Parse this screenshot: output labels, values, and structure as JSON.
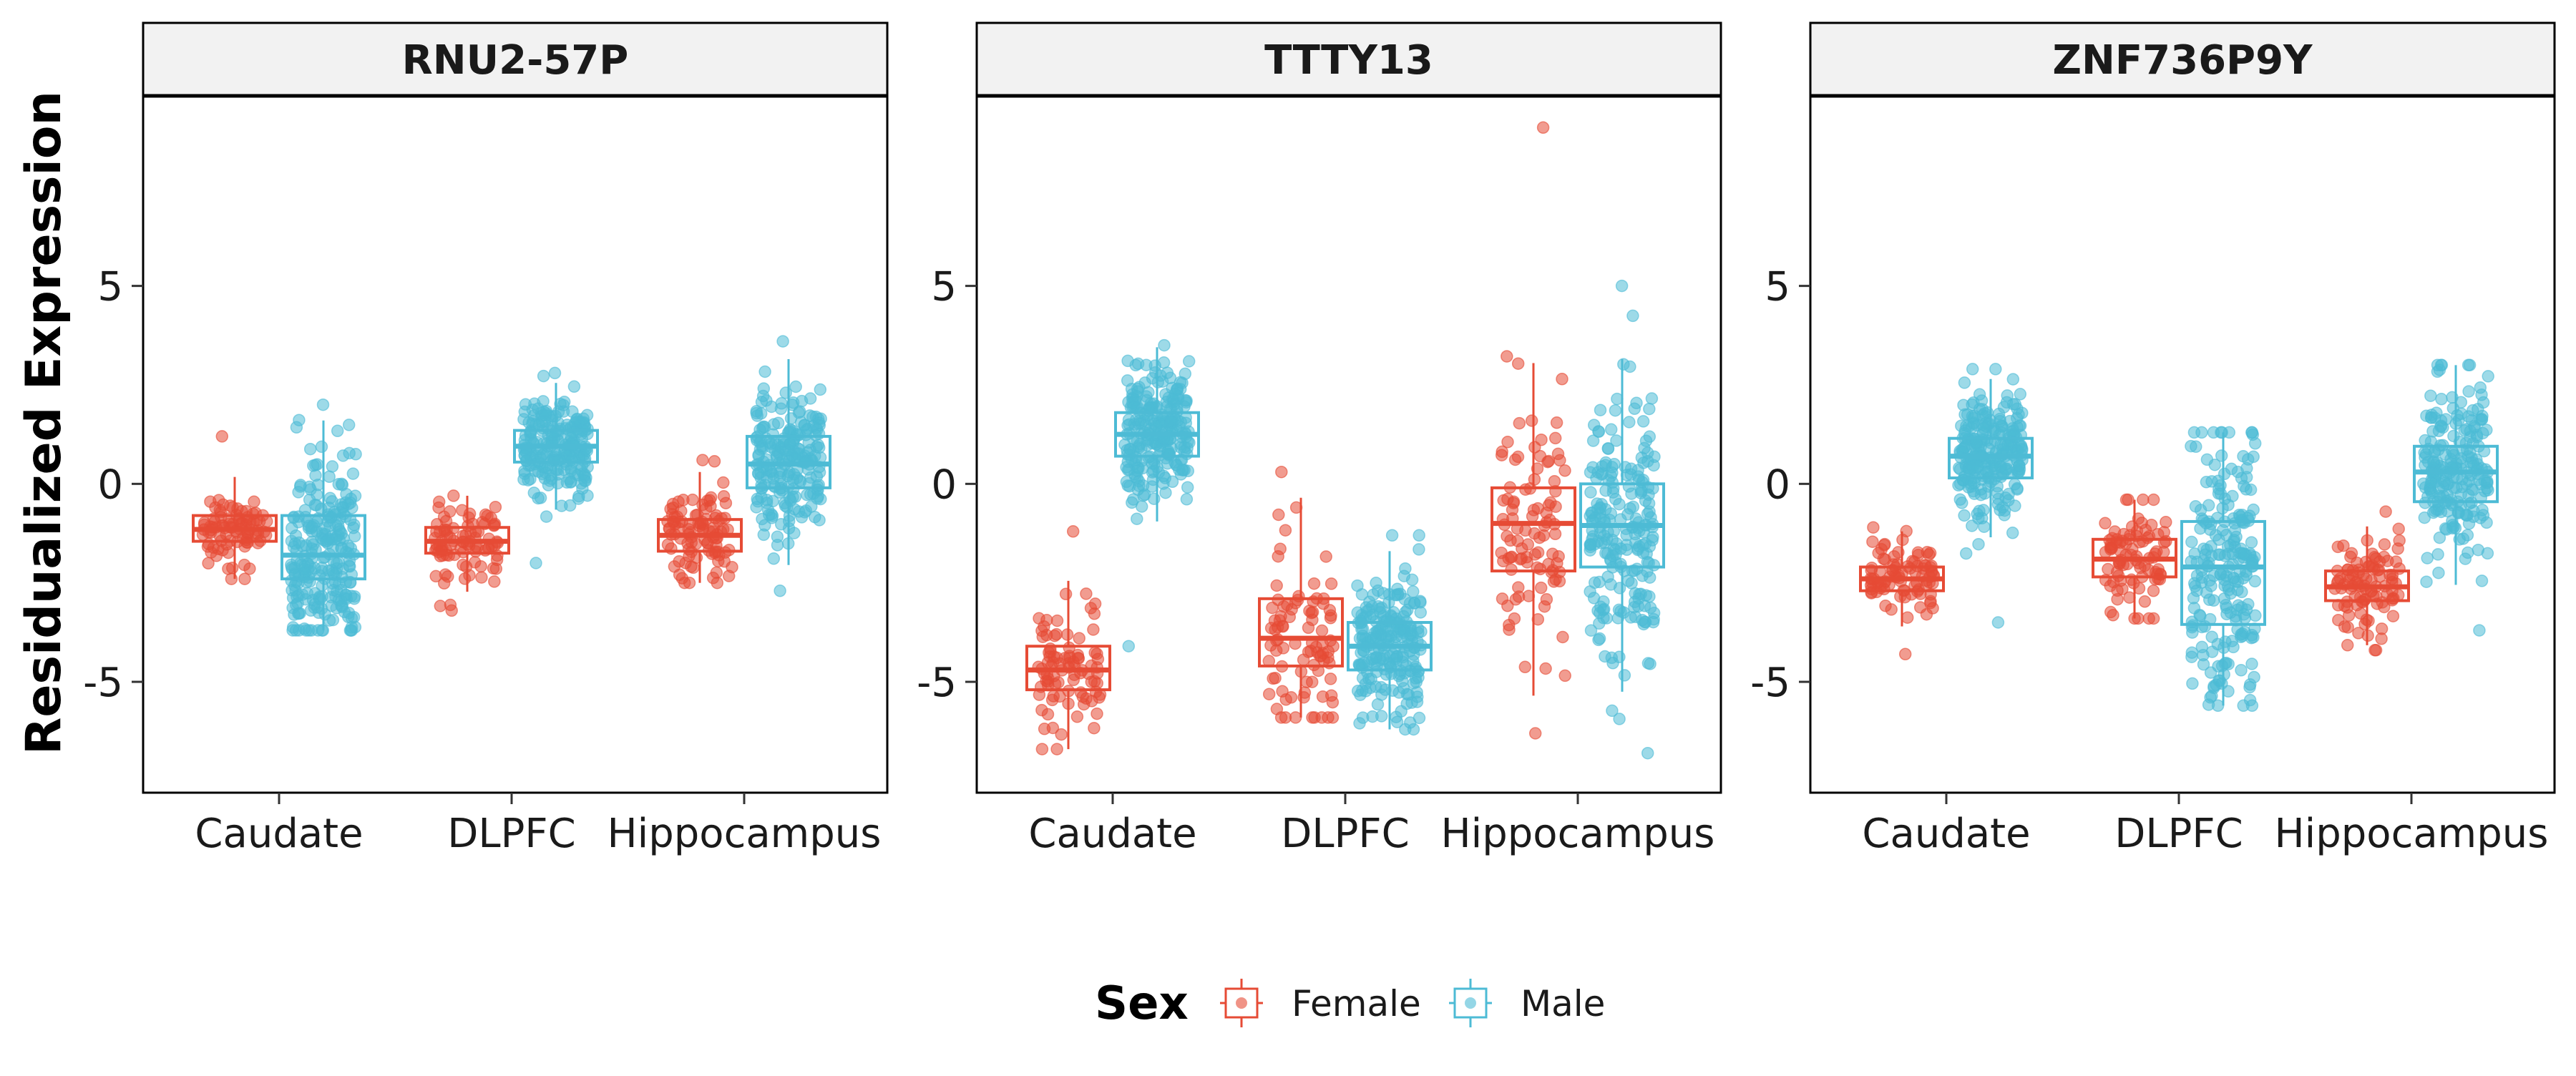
{
  "chart_data": {
    "type": "box",
    "ylabel": "Residualized Expression",
    "categories": [
      "Caudate",
      "DLPFC",
      "Hippocampus"
    ],
    "yticks": [
      5,
      0,
      -5
    ],
    "ylim": [
      -7.8,
      9.8
    ],
    "legend": {
      "title": "Sex",
      "placement": "bottom",
      "items": [
        {
          "name": "Female",
          "color": "#E64B35"
        },
        {
          "name": "Male",
          "color": "#4DBBD5"
        }
      ]
    },
    "panels": [
      {
        "title": "RNU2-57P",
        "boxes": [
          {
            "category": "Caudate",
            "sex": "Female",
            "q1": -1.45,
            "median": -1.15,
            "q3": -0.8,
            "min": -2.4,
            "max": 1.2,
            "n": 90
          },
          {
            "category": "Caudate",
            "sex": "Male",
            "q1": -2.4,
            "median": -1.8,
            "q3": -0.8,
            "min": -3.7,
            "max": 2.0,
            "n": 250
          },
          {
            "category": "DLPFC",
            "sex": "Female",
            "q1": -1.75,
            "median": -1.45,
            "q3": -1.1,
            "min": -3.2,
            "max": -0.3,
            "n": 90
          },
          {
            "category": "DLPFC",
            "sex": "Male",
            "q1": 0.55,
            "median": 0.95,
            "q3": 1.35,
            "min": -2.0,
            "max": 2.8,
            "n": 220
          },
          {
            "category": "Hippocampus",
            "sex": "Female",
            "q1": -1.7,
            "median": -1.3,
            "q3": -0.9,
            "min": -2.5,
            "max": 0.6,
            "n": 100
          },
          {
            "category": "Hippocampus",
            "sex": "Male",
            "q1": -0.1,
            "median": 0.5,
            "q3": 1.2,
            "min": -2.7,
            "max": 3.6,
            "n": 220
          }
        ]
      },
      {
        "title": "TTTY13",
        "boxes": [
          {
            "category": "Caudate",
            "sex": "Female",
            "q1": -5.2,
            "median": -4.7,
            "q3": -4.1,
            "min": -6.7,
            "max": -1.2,
            "n": 90
          },
          {
            "category": "Caudate",
            "sex": "Male",
            "q1": 0.7,
            "median": 1.25,
            "q3": 1.8,
            "min": -4.1,
            "max": 3.5,
            "n": 250
          },
          {
            "category": "DLPFC",
            "sex": "Female",
            "q1": -4.6,
            "median": -3.9,
            "q3": -2.9,
            "min": -5.9,
            "max": 0.3,
            "n": 90
          },
          {
            "category": "DLPFC",
            "sex": "Male",
            "q1": -4.7,
            "median": -4.1,
            "q3": -3.5,
            "min": -6.2,
            "max": -1.3,
            "n": 220
          },
          {
            "category": "Hippocampus",
            "sex": "Female",
            "q1": -2.2,
            "median": -1.0,
            "q3": -0.1,
            "min": -6.3,
            "max": 9.0,
            "n": 100
          },
          {
            "category": "Hippocampus",
            "sex": "Male",
            "q1": -2.1,
            "median": -1.05,
            "q3": 0.0,
            "min": -6.8,
            "max": 5.0,
            "n": 220
          }
        ]
      },
      {
        "title": "ZNF736P9Y",
        "boxes": [
          {
            "category": "Caudate",
            "sex": "Female",
            "q1": -2.7,
            "median": -2.4,
            "q3": -2.1,
            "min": -4.3,
            "max": -1.1,
            "n": 90
          },
          {
            "category": "Caudate",
            "sex": "Male",
            "q1": 0.15,
            "median": 0.7,
            "q3": 1.15,
            "min": -3.5,
            "max": 2.9,
            "n": 250
          },
          {
            "category": "DLPFC",
            "sex": "Female",
            "q1": -2.35,
            "median": -1.9,
            "q3": -1.4,
            "min": -3.4,
            "max": -0.4,
            "n": 90
          },
          {
            "category": "DLPFC",
            "sex": "Male",
            "q1": -3.55,
            "median": -2.1,
            "q3": -0.95,
            "min": -5.6,
            "max": 1.3,
            "n": 220
          },
          {
            "category": "Hippocampus",
            "sex": "Female",
            "q1": -2.95,
            "median": -2.6,
            "q3": -2.2,
            "min": -4.2,
            "max": -0.7,
            "n": 100
          },
          {
            "category": "Hippocampus",
            "sex": "Male",
            "q1": -0.45,
            "median": 0.3,
            "q3": 0.95,
            "min": -3.7,
            "max": 3.0,
            "n": 220
          }
        ]
      }
    ]
  }
}
